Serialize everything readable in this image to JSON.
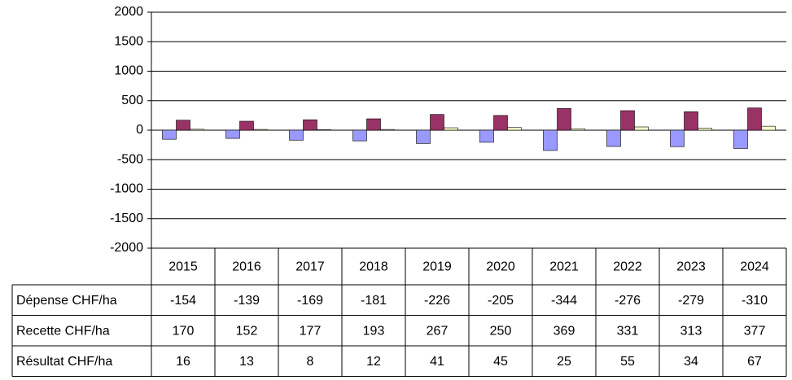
{
  "chart_data": {
    "type": "bar",
    "categories": [
      "2015",
      "2016",
      "2017",
      "2018",
      "2019",
      "2020",
      "2021",
      "2022",
      "2023",
      "2024"
    ],
    "series": [
      {
        "name": "Dépense CHF/ha",
        "color": "#9999ff",
        "values": [
          -154,
          -139,
          -169,
          -181,
          -226,
          -205,
          -344,
          -276,
          -279,
          -310
        ]
      },
      {
        "name": "Recette CHF/ha",
        "color": "#993366",
        "values": [
          170,
          152,
          177,
          193,
          267,
          250,
          369,
          331,
          313,
          377
        ]
      },
      {
        "name": "Résultat CHF/ha",
        "color": "#ffffcc",
        "values": [
          16,
          13,
          8,
          12,
          41,
          45,
          25,
          55,
          34,
          67
        ]
      }
    ],
    "ylim": [
      -2000,
      2000
    ],
    "yticks": [
      -2000,
      -1500,
      -1000,
      -500,
      0,
      500,
      1000,
      1500,
      2000
    ],
    "grid": true,
    "data_table": true
  }
}
